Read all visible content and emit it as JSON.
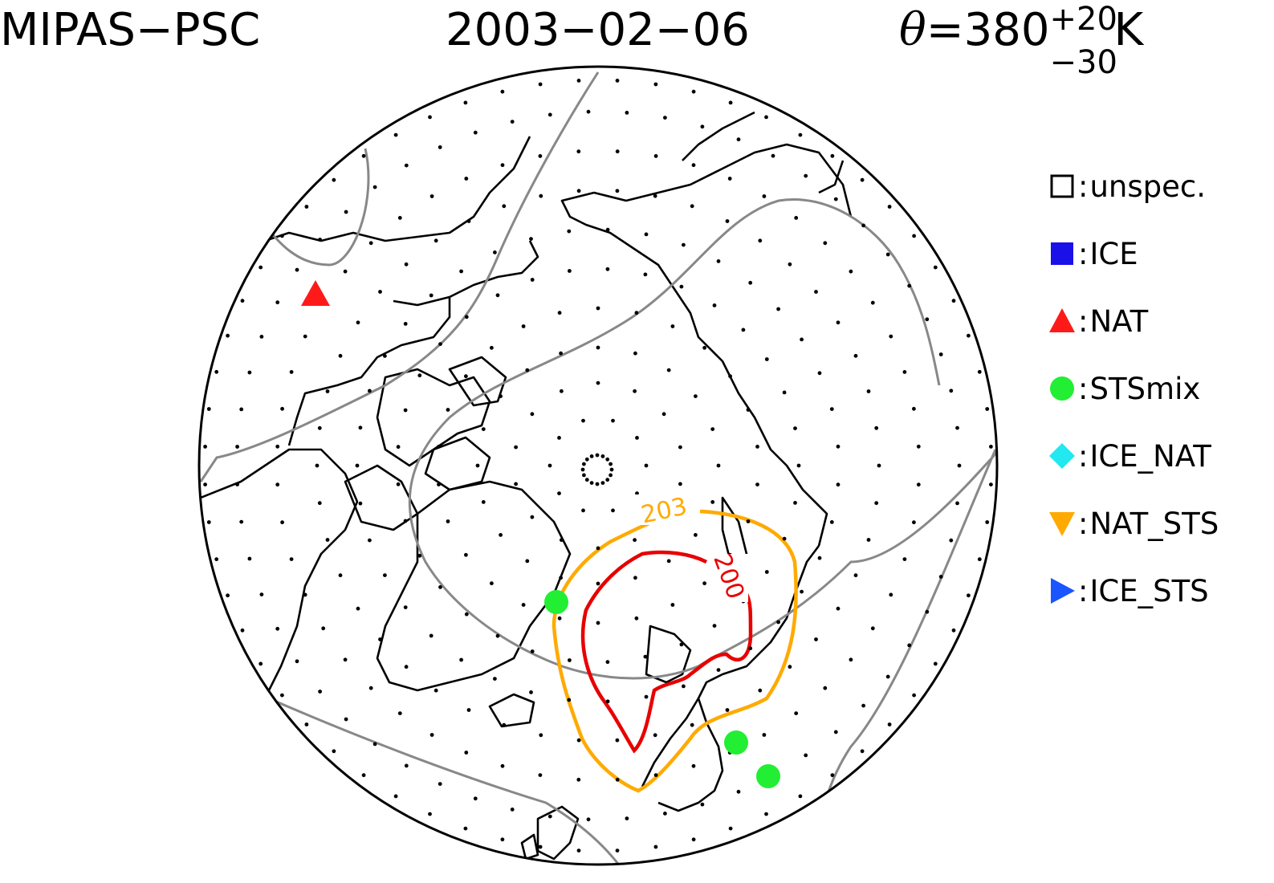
{
  "header": {
    "instrument": "MIPAS−PSC",
    "date": "2003−02−06",
    "theta_prefix": "θ",
    "theta_value": "=380",
    "theta_sup": "+20",
    "theta_sub": "−30",
    "theta_unit": "K"
  },
  "legend": [
    {
      "label": "unspec.",
      "symbol": "open-square-icon",
      "color": "#000000"
    },
    {
      "label": "ICE",
      "symbol": "filled-square-icon",
      "color": "#1a10e8"
    },
    {
      "label": "NAT",
      "symbol": "triangle-up-icon",
      "color": "#ff1a1a"
    },
    {
      "label": "STSmix",
      "symbol": "circle-icon",
      "color": "#22ee33"
    },
    {
      "label": "ICE_NAT",
      "symbol": "diamond-icon",
      "color": "#22e8f0"
    },
    {
      "label": "NAT_STS",
      "symbol": "triangle-down-icon",
      "color": "#ffaa00"
    },
    {
      "label": "ICE_STS",
      "symbol": "triangle-right-icon",
      "color": "#1a55ff"
    }
  ],
  "contours": [
    {
      "label": "203",
      "color": "#ffaa00"
    },
    {
      "label": "200",
      "color": "#e80000"
    }
  ],
  "colors": {
    "coastline": "#000000",
    "vortex_edge": "#888888",
    "measurement_dot": "#000000"
  },
  "observations": [
    {
      "class": "NAT",
      "symbol": "triangle-up-icon",
      "color": "#ff1a1a"
    },
    {
      "class": "STSmix",
      "symbol": "circle-icon",
      "color": "#22ee33"
    },
    {
      "class": "STSmix",
      "symbol": "circle-icon",
      "color": "#22ee33"
    },
    {
      "class": "STSmix",
      "symbol": "circle-icon",
      "color": "#22ee33"
    }
  ]
}
